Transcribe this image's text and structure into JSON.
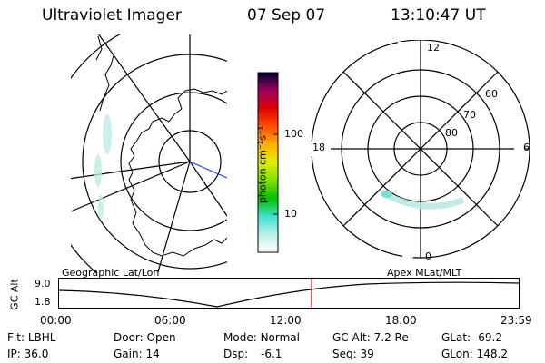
{
  "header": {
    "title": "Ultraviolet Imager",
    "date": "07 Sep 07",
    "time": "13:10:47 UT"
  },
  "colorbar": {
    "unit_label": "photon cm⁻²s⁻¹",
    "tick_labels": [
      "100",
      "10"
    ],
    "tick_values": [
      100,
      10
    ],
    "scale": "log",
    "range": [
      2,
      300
    ],
    "colors": [
      "#ffffff",
      "#b8f0e8",
      "#40e0d0",
      "#00c000",
      "#80e000",
      "#e0f000",
      "#ffb000",
      "#ff5000",
      "#e00000",
      "#a00060",
      "#000030"
    ]
  },
  "left_map": {
    "label": "Geographic Lat/Lon"
  },
  "right_map": {
    "label": "Apex MLat/MLT",
    "mlt_labels": {
      "top": "12",
      "left": "18",
      "right": "6",
      "bottom": "0"
    },
    "lat_labels": [
      "60",
      "70",
      "80"
    ]
  },
  "timeline": {
    "ylabel": "GC Alt",
    "ytick_labels": [
      "9.0",
      "1.8"
    ],
    "xtick_labels": [
      "00:00",
      "06:00",
      "12:00",
      "18:00",
      "23:59"
    ],
    "current_time_hours": 13.18,
    "marker_color": "#e00000"
  },
  "footer": {
    "row1": [
      {
        "label": "Flt:",
        "value": "LBHL"
      },
      {
        "label": "Door:",
        "value": "Open"
      },
      {
        "label": "Mode:",
        "value": "Normal"
      },
      {
        "label": "GC Alt:",
        "value": "7.2 Re"
      },
      {
        "label": "GLat:",
        "value": "-69.2"
      }
    ],
    "row2": [
      {
        "label": "IP:",
        "value": "36.0"
      },
      {
        "label": "Gain:",
        "value": "14"
      },
      {
        "label": "Dsp:",
        "value": "-6.1"
      },
      {
        "label": "Seq:",
        "value": "39"
      },
      {
        "label": "GLon:",
        "value": "148.2"
      }
    ]
  }
}
